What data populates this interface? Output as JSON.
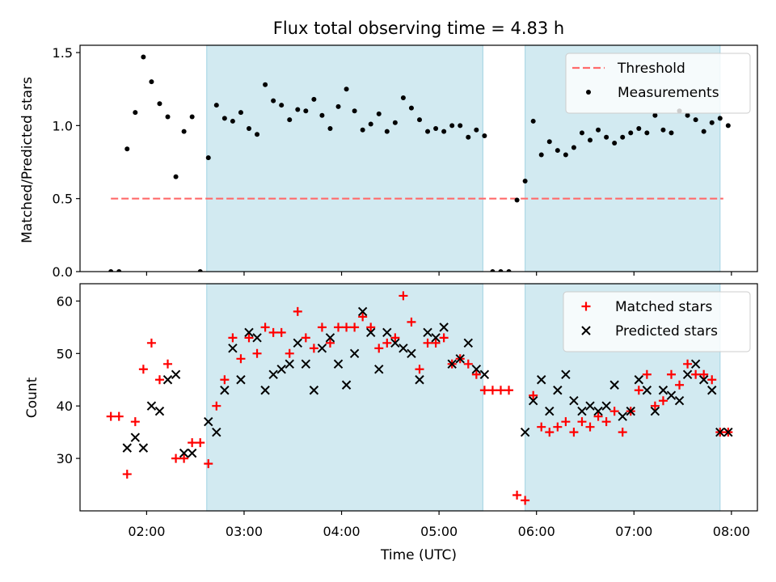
{
  "figure": {
    "title": "Flux total observing time = 4.83 h",
    "xlabel": "Time (UTC)",
    "xticks": [
      "02:00",
      "03:00",
      "04:00",
      "05:00",
      "06:00",
      "07:00",
      "08:00"
    ],
    "shading_color": "#add8e6"
  },
  "chart_data": [
    {
      "type": "scatter",
      "panel": "top",
      "xlabel": "",
      "ylabel": "Matched/Predicted stars",
      "ylim": [
        0,
        1.55
      ],
      "xlim": [
        "01:19",
        "08:16"
      ],
      "yticks": [
        "0.0",
        "0.5",
        "1.0",
        "1.5"
      ],
      "grid": false,
      "legend_position": "upper-right",
      "shaded_intervals": [
        [
          "02:37",
          "05:27"
        ],
        [
          "05:53",
          "07:53"
        ]
      ],
      "threshold": {
        "name": "Threshold",
        "value": 0.5,
        "x_range": [
          "01:38",
          "07:55"
        ],
        "color": "#ff6b6b",
        "style": "dashed"
      },
      "series": [
        {
          "name": "Measurements",
          "color": "#000000",
          "marker": "dot",
          "x": [
            "01:38",
            "01:43",
            "01:48",
            "01:53",
            "01:58",
            "02:03",
            "02:08",
            "02:13",
            "02:18",
            "02:23",
            "02:28",
            "02:33",
            "02:38",
            "02:43",
            "02:48",
            "02:53",
            "02:58",
            "03:03",
            "03:08",
            "03:13",
            "03:18",
            "03:23",
            "03:28",
            "03:33",
            "03:38",
            "03:43",
            "03:48",
            "03:53",
            "03:58",
            "04:03",
            "04:08",
            "04:13",
            "04:18",
            "04:23",
            "04:28",
            "04:33",
            "04:38",
            "04:43",
            "04:48",
            "04:53",
            "04:58",
            "05:03",
            "05:08",
            "05:13",
            "05:18",
            "05:23",
            "05:28",
            "05:33",
            "05:38",
            "05:43",
            "05:48",
            "05:53",
            "05:58",
            "06:03",
            "06:08",
            "06:13",
            "06:18",
            "06:23",
            "06:28",
            "06:33",
            "06:38",
            "06:43",
            "06:48",
            "06:53",
            "06:58",
            "07:03",
            "07:08",
            "07:13",
            "07:18",
            "07:23",
            "07:28",
            "07:33",
            "07:38",
            "07:43",
            "07:48",
            "07:53",
            "07:58"
          ],
          "y": [
            0,
            0,
            0.84,
            1.09,
            1.47,
            1.3,
            1.15,
            1.06,
            0.65,
            0.96,
            1.06,
            0,
            0.78,
            1.14,
            1.05,
            1.03,
            1.09,
            0.98,
            0.94,
            1.28,
            1.17,
            1.14,
            1.04,
            1.11,
            1.1,
            1.18,
            1.07,
            0.98,
            1.13,
            1.25,
            1.1,
            0.97,
            1.01,
            1.08,
            0.96,
            1.02,
            1.19,
            1.12,
            1.04,
            0.96,
            0.98,
            0.96,
            1.0,
            1.0,
            0.92,
            0.97,
            0.93,
            0,
            0,
            0,
            0.49,
            0.62,
            1.03,
            0.8,
            0.89,
            0.83,
            0.8,
            0.85,
            0.95,
            0.9,
            0.97,
            0.92,
            0.88,
            0.92,
            0.95,
            0.98,
            0.95,
            1.07,
            0.97,
            0.95,
            1.1,
            1.07,
            1.04,
            0.96,
            1.02,
            1.05,
            1.0
          ]
        }
      ]
    },
    {
      "type": "scatter",
      "panel": "bottom",
      "xlabel": "Time (UTC)",
      "ylabel": "Count",
      "ylim": [
        20,
        63.3
      ],
      "xlim": [
        "01:19",
        "08:16"
      ],
      "yticks": [
        "30",
        "40",
        "50",
        "60"
      ],
      "grid": false,
      "legend_position": "upper-right",
      "shaded_intervals": [
        [
          "02:37",
          "05:27"
        ],
        [
          "05:53",
          "07:53"
        ]
      ],
      "series": [
        {
          "name": "Matched stars",
          "color": "#ff0000",
          "marker": "plus",
          "x": [
            "01:38",
            "01:43",
            "01:48",
            "01:53",
            "01:58",
            "02:03",
            "02:08",
            "02:13",
            "02:18",
            "02:23",
            "02:28",
            "02:33",
            "02:38",
            "02:43",
            "02:48",
            "02:53",
            "02:58",
            "03:03",
            "03:08",
            "03:13",
            "03:18",
            "03:23",
            "03:28",
            "03:33",
            "03:38",
            "03:43",
            "03:48",
            "03:53",
            "03:58",
            "04:03",
            "04:08",
            "04:13",
            "04:18",
            "04:23",
            "04:28",
            "04:33",
            "04:38",
            "04:43",
            "04:48",
            "04:53",
            "04:58",
            "05:03",
            "05:08",
            "05:13",
            "05:18",
            "05:23",
            "05:28",
            "05:33",
            "05:38",
            "05:43",
            "05:48",
            "05:53",
            "05:58",
            "06:03",
            "06:08",
            "06:13",
            "06:18",
            "06:23",
            "06:28",
            "06:33",
            "06:38",
            "06:43",
            "06:48",
            "06:53",
            "06:58",
            "07:03",
            "07:08",
            "07:13",
            "07:18",
            "07:23",
            "07:28",
            "07:33",
            "07:38",
            "07:43",
            "07:48",
            "07:53",
            "07:58"
          ],
          "y": [
            38,
            38,
            27,
            37,
            47,
            52,
            45,
            48,
            30,
            30,
            33,
            33,
            29,
            40,
            45,
            53,
            49,
            53,
            50,
            55,
            54,
            54,
            50,
            58,
            53,
            51,
            55,
            52,
            55,
            55,
            55,
            57,
            55,
            51,
            52,
            53,
            61,
            56,
            47,
            52,
            52,
            53,
            48,
            49,
            48,
            46,
            43,
            43,
            43,
            43,
            23,
            22,
            42,
            36,
            35,
            36,
            37,
            35,
            37,
            36,
            38,
            37,
            39,
            35,
            39,
            43,
            46,
            40,
            41,
            46,
            44,
            48,
            46,
            46,
            45,
            35,
            35
          ]
        },
        {
          "name": "Predicted stars",
          "color": "#000000",
          "marker": "x",
          "x": [
            "01:48",
            "01:53",
            "01:58",
            "02:03",
            "02:08",
            "02:13",
            "02:18",
            "02:23",
            "02:28",
            "02:38",
            "02:43",
            "02:48",
            "02:53",
            "02:58",
            "03:03",
            "03:08",
            "03:13",
            "03:18",
            "03:23",
            "03:28",
            "03:33",
            "03:38",
            "03:43",
            "03:48",
            "03:53",
            "03:58",
            "04:03",
            "04:08",
            "04:13",
            "04:18",
            "04:23",
            "04:28",
            "04:33",
            "04:38",
            "04:43",
            "04:48",
            "04:53",
            "04:58",
            "05:03",
            "05:08",
            "05:13",
            "05:18",
            "05:23",
            "05:28",
            "05:53",
            "05:58",
            "06:03",
            "06:08",
            "06:13",
            "06:18",
            "06:23",
            "06:28",
            "06:33",
            "06:38",
            "06:43",
            "06:48",
            "06:53",
            "06:58",
            "07:03",
            "07:08",
            "07:13",
            "07:18",
            "07:23",
            "07:28",
            "07:33",
            "07:38",
            "07:43",
            "07:48",
            "07:53",
            "07:58"
          ],
          "y": [
            32,
            34,
            32,
            40,
            39,
            45,
            46,
            31,
            31,
            37,
            35,
            43,
            51,
            45,
            54,
            53,
            43,
            46,
            47,
            48,
            52,
            48,
            43,
            51,
            53,
            48,
            44,
            50,
            58,
            54,
            47,
            54,
            52,
            51,
            50,
            45,
            54,
            53,
            55,
            48,
            49,
            52,
            47,
            46,
            35,
            41,
            45,
            39,
            43,
            46,
            41,
            39,
            40,
            39,
            40,
            44,
            38,
            39,
            45,
            43,
            39,
            43,
            42,
            41,
            46,
            48,
            45,
            43,
            35,
            35
          ]
        }
      ]
    }
  ]
}
